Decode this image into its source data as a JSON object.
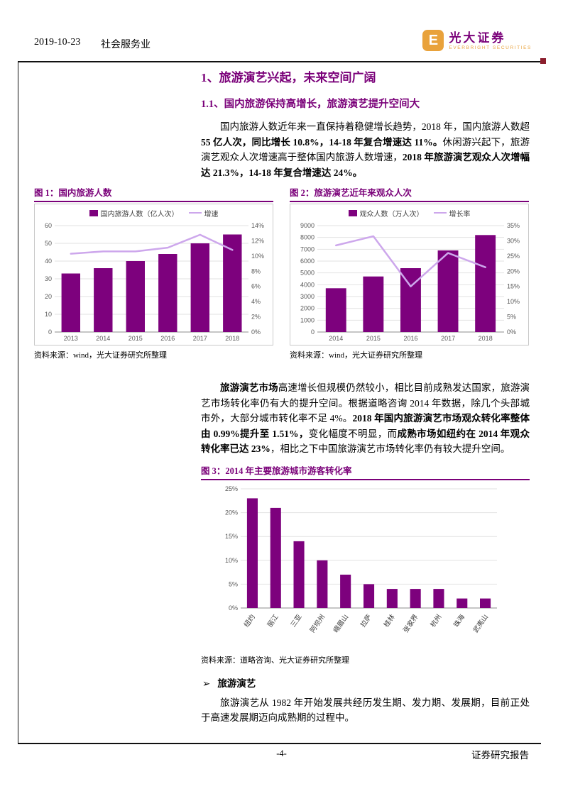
{
  "colors": {
    "accent": "#7A0079",
    "bar": "#7D017D",
    "line": "#CDA7EC",
    "gold": "#E9A23B",
    "marker": "#8B1E2D",
    "grid": "#E2E2E2",
    "axis_text": "#595959"
  },
  "header": {
    "date": "2019-10-23",
    "sector": "社会服务业",
    "logo": {
      "mark": "E",
      "brand": "光大证券",
      "sub": "EVERBRIGHT SECURITIES"
    }
  },
  "headings": {
    "h1": "1、旅游演艺兴起，未来空间广阔",
    "h2": "1.1、国内旅游保持高增长，旅游演艺提升空间大"
  },
  "paragraphs": {
    "p1": [
      {
        "text": "国内旅游人数近年来一直保持着稳健增长趋势，2018 年，国内旅游人数超 ",
        "bold": false
      },
      {
        "text": "55 亿人次，同比增长 10.8%，14-18 年复合增速达 11%。",
        "bold": true
      },
      {
        "text": "休闲游兴起下，旅游演艺观众人次增速高于整体国内旅游人数增速，",
        "bold": false
      },
      {
        "text": "2018 年旅游演艺观众人次增幅达 21.3%，14-18 年复合增速达 24%。",
        "bold": true
      }
    ],
    "p2": [
      {
        "text": "旅游演艺市场",
        "bold": true
      },
      {
        "text": "高速增长但规模仍然较小，相比目前成熟发达国家，旅游演艺市场转化率仍有大的提升空间。根据道略咨询 2014 年数据，除几个头部城市外，大部分城市转化率不足 4%。",
        "bold": false
      },
      {
        "text": "2018 年国内旅游演艺市场观众转化率整体由 0.99%提升至 1.51%，",
        "bold": true
      },
      {
        "text": "变化幅度不明显，而",
        "bold": false
      },
      {
        "text": "成熟市场如纽约在 2014 年观众转化率已达 23%",
        "bold": true
      },
      {
        "text": "，相比之下中国旅游演艺市场转化率仍有较大提升空间。",
        "bold": false
      }
    ],
    "p3": [
      {
        "text": "旅游演艺从 1982 年开始发展共经历发生期、发力期、发展期，目前正处于高速发展期迈向成熟期的过程中。",
        "bold": false
      }
    ]
  },
  "bullet": {
    "marker": "➢",
    "label": "旅游演艺"
  },
  "figures": [
    {
      "title": "图 1：国内旅游人数",
      "source": "资料来源：wind，光大证券研究所整理"
    },
    {
      "title": "图 2：旅游演艺近年来观众人次",
      "source": "资料来源：wind，光大证券研究所整理"
    },
    {
      "title": "图 3：2014 年主要旅游城市游客转化率",
      "source": "资料来源：道略咨询、光大证券研究所整理"
    }
  ],
  "footer": {
    "page": "-4-",
    "right": "证券研究报告"
  },
  "chart_data": [
    {
      "id": "fig1",
      "type": "bar",
      "title": "国内旅游人数",
      "categories": [
        "2013",
        "2014",
        "2015",
        "2016",
        "2017",
        "2018"
      ],
      "series": [
        {
          "name": "国内旅游人数（亿人次）",
          "type": "bar",
          "axis": "left",
          "values": [
            33,
            36,
            40,
            44,
            50,
            55
          ]
        },
        {
          "name": "增速",
          "type": "line",
          "axis": "right",
          "values": [
            10.3,
            10.6,
            10.6,
            11.1,
            12.8,
            10.8
          ]
        }
      ],
      "left_axis": {
        "min": 0,
        "max": 60,
        "step": 10,
        "suffix": ""
      },
      "right_axis": {
        "min": 0,
        "max": 14,
        "step": 2,
        "suffix": "%"
      },
      "grid": true,
      "legend_position": "top"
    },
    {
      "id": "fig2",
      "type": "bar",
      "title": "旅游演艺近年来观众人次",
      "categories": [
        "2014",
        "2015",
        "2016",
        "2017",
        "2018"
      ],
      "series": [
        {
          "name": "观众人数（万人次）",
          "type": "bar",
          "axis": "left",
          "values": [
            3700,
            4700,
            5400,
            6900,
            8200
          ]
        },
        {
          "name": "增长率",
          "type": "line",
          "axis": "right",
          "values": [
            28.5,
            31.5,
            15,
            26,
            21.3
          ]
        }
      ],
      "left_axis": {
        "min": 0,
        "max": 9000,
        "step": 1000,
        "suffix": ""
      },
      "right_axis": {
        "min": 0,
        "max": 35,
        "step": 5,
        "suffix": "%"
      },
      "grid": true,
      "legend_position": "top"
    },
    {
      "id": "fig3",
      "type": "bar",
      "title": "2014 年主要旅游城市游客转化率",
      "categories": [
        "纽约",
        "丽江",
        "三亚",
        "阿坝州",
        "峨眉山",
        "拉萨",
        "桂林",
        "张家界",
        "杭州",
        "珠海",
        "武夷山"
      ],
      "series": [
        {
          "name": "游客转化率",
          "type": "bar",
          "axis": "left",
          "values": [
            23,
            21,
            14,
            10,
            7,
            5,
            4,
            4,
            4,
            2,
            2
          ]
        }
      ],
      "left_axis": {
        "min": 0,
        "max": 25,
        "step": 5,
        "suffix": "%"
      },
      "grid": true,
      "legend_position": "none"
    }
  ]
}
